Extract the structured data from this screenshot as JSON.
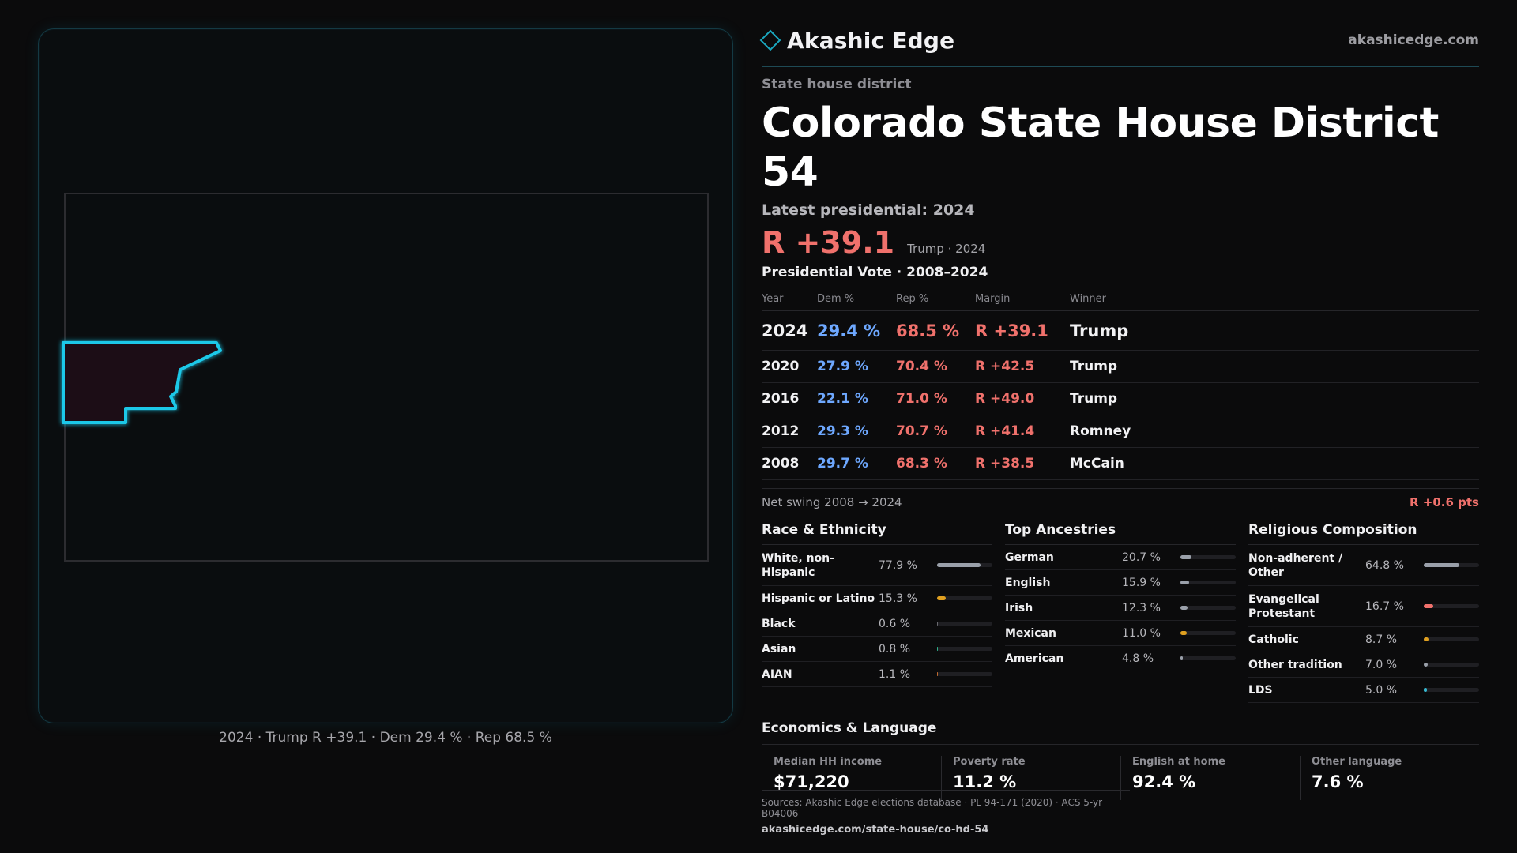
{
  "brand": {
    "name": "Akashic Edge",
    "url": "akashicedge.com",
    "icon": "diamond-icon",
    "accent": "#1aa8c0"
  },
  "kicker": "State house district",
  "title": "Colorado State House District 54",
  "latest_label": "Latest presidential: 2024",
  "headline": {
    "margin": "R +39.1",
    "sub": "Trump · 2024"
  },
  "pv_title": "Presidential Vote · 2008–2024",
  "pv_headers": {
    "year": "Year",
    "dem": "Dem %",
    "rep": "Rep %",
    "margin": "Margin",
    "winner": "Winner"
  },
  "pv_rows": [
    {
      "year": "2024",
      "dem": "29.4 %",
      "rep": "68.5 %",
      "margin": "R +39.1",
      "winner": "Trump"
    },
    {
      "year": "2020",
      "dem": "27.9 %",
      "rep": "70.4 %",
      "margin": "R +42.5",
      "winner": "Trump"
    },
    {
      "year": "2016",
      "dem": "22.1 %",
      "rep": "71.0 %",
      "margin": "R +49.0",
      "winner": "Trump"
    },
    {
      "year": "2012",
      "dem": "29.3 %",
      "rep": "70.7 %",
      "margin": "R +41.4",
      "winner": "Romney"
    },
    {
      "year": "2008",
      "dem": "29.7 %",
      "rep": "68.3 %",
      "margin": "R +38.5",
      "winner": "McCain"
    }
  ],
  "swing": {
    "label": "Net swing 2008 → 2024",
    "value": "R +0.6 pts"
  },
  "race": {
    "title": "Race & Ethnicity",
    "items": [
      {
        "label": "White, non-Hispanic",
        "value": "77.9 %",
        "pct": 77.9,
        "color": "#9aa0aa"
      },
      {
        "label": "Hispanic or Latino",
        "value": "15.3 %",
        "pct": 15.3,
        "color": "#e0a020"
      },
      {
        "label": "Black",
        "value": "0.6 %",
        "pct": 0.6,
        "color": "#6a6a70"
      },
      {
        "label": "Asian",
        "value": "0.8 %",
        "pct": 0.8,
        "color": "#2fb08a"
      },
      {
        "label": "AIAN",
        "value": "1.1 %",
        "pct": 1.1,
        "color": "#c06a30"
      }
    ]
  },
  "ancestry": {
    "title": "Top Ancestries",
    "items": [
      {
        "label": "German",
        "value": "20.7 %",
        "pct": 20.7,
        "color": "#9aa0aa"
      },
      {
        "label": "English",
        "value": "15.9 %",
        "pct": 15.9,
        "color": "#9aa0aa"
      },
      {
        "label": "Irish",
        "value": "12.3 %",
        "pct": 12.3,
        "color": "#9aa0aa"
      },
      {
        "label": "Mexican",
        "value": "11.0 %",
        "pct": 11.0,
        "color": "#e0a020"
      },
      {
        "label": "American",
        "value": "4.8 %",
        "pct": 4.8,
        "color": "#9aa0aa"
      }
    ]
  },
  "religion": {
    "title": "Religious Composition",
    "items": [
      {
        "label": "Non-adherent / Other",
        "value": "64.8 %",
        "pct": 64.8,
        "color": "#9aa0aa"
      },
      {
        "label": "Evangelical Protestant",
        "value": "16.7 %",
        "pct": 16.7,
        "color": "#f0716c"
      },
      {
        "label": "Catholic",
        "value": "8.7 %",
        "pct": 8.7,
        "color": "#e0a020"
      },
      {
        "label": "Other tradition",
        "value": "7.0 %",
        "pct": 7.0,
        "color": "#9aa0aa"
      },
      {
        "label": "LDS",
        "value": "5.0 %",
        "pct": 5.0,
        "color": "#36b8d0"
      }
    ]
  },
  "econ": {
    "title": "Economics & Language",
    "items": [
      {
        "label": "Median HH income",
        "value": "$71,220"
      },
      {
        "label": "Poverty rate",
        "value": "11.2 %"
      },
      {
        "label": "English at home",
        "value": "92.4 %"
      },
      {
        "label": "Other language",
        "value": "7.6 %"
      }
    ]
  },
  "map_caption": "2024 · Trump R +39.1 · Dem 29.4 % · Rep 68.5 %",
  "footer": {
    "sources": "Sources: Akashic Edge elections database · PL 94-171 (2020) · ACS 5-yr B04006",
    "url": "akashicedge.com/state-house/co-hd-54"
  },
  "colors": {
    "dem": "#6ea8ff",
    "rep": "#f0716c",
    "district_outline": "#1ec8e8",
    "district_fill": "#1d1012"
  }
}
